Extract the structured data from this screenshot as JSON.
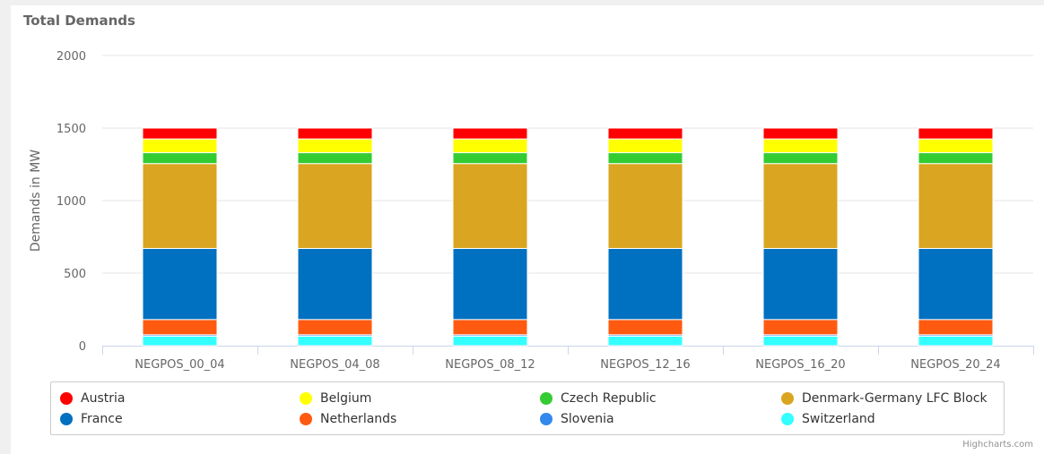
{
  "chart_data": {
    "type": "bar",
    "stacked": true,
    "title": "Total Demands",
    "xlabel": "",
    "ylabel": "Demands in MW",
    "ylim": [
      0,
      2000
    ],
    "yticks": [
      0,
      500,
      1000,
      1500,
      2000
    ],
    "grid": true,
    "legend_position": "bottom",
    "categories": [
      "NEGPOS_00_04",
      "NEGPOS_04_08",
      "NEGPOS_08_12",
      "NEGPOS_12_16",
      "NEGPOS_16_20",
      "NEGPOS_20_24"
    ],
    "series": [
      {
        "name": "Austria",
        "color": "#ff0000",
        "values": [
          75,
          75,
          75,
          75,
          75,
          75
        ]
      },
      {
        "name": "Belgium",
        "color": "#ffff00",
        "values": [
          95,
          95,
          95,
          95,
          95,
          95
        ]
      },
      {
        "name": "Czech Republic",
        "color": "#33cc33",
        "values": [
          75,
          75,
          75,
          75,
          75,
          75
        ]
      },
      {
        "name": "Denmark-Germany LFC Block",
        "color": "#daa520",
        "values": [
          585,
          585,
          585,
          585,
          585,
          585
        ]
      },
      {
        "name": "France",
        "color": "#0070c0",
        "values": [
          490,
          490,
          490,
          490,
          490,
          490
        ]
      },
      {
        "name": "Netherlands",
        "color": "#ff5a0f",
        "values": [
          105,
          105,
          105,
          105,
          105,
          105
        ]
      },
      {
        "name": "Slovenia",
        "color": "#3388ee",
        "values": [
          10,
          10,
          10,
          10,
          10,
          10
        ]
      },
      {
        "name": "Switzerland",
        "color": "#33ffff",
        "values": [
          65,
          65,
          65,
          65,
          65,
          65
        ]
      }
    ]
  },
  "credits": "Highcharts.com"
}
